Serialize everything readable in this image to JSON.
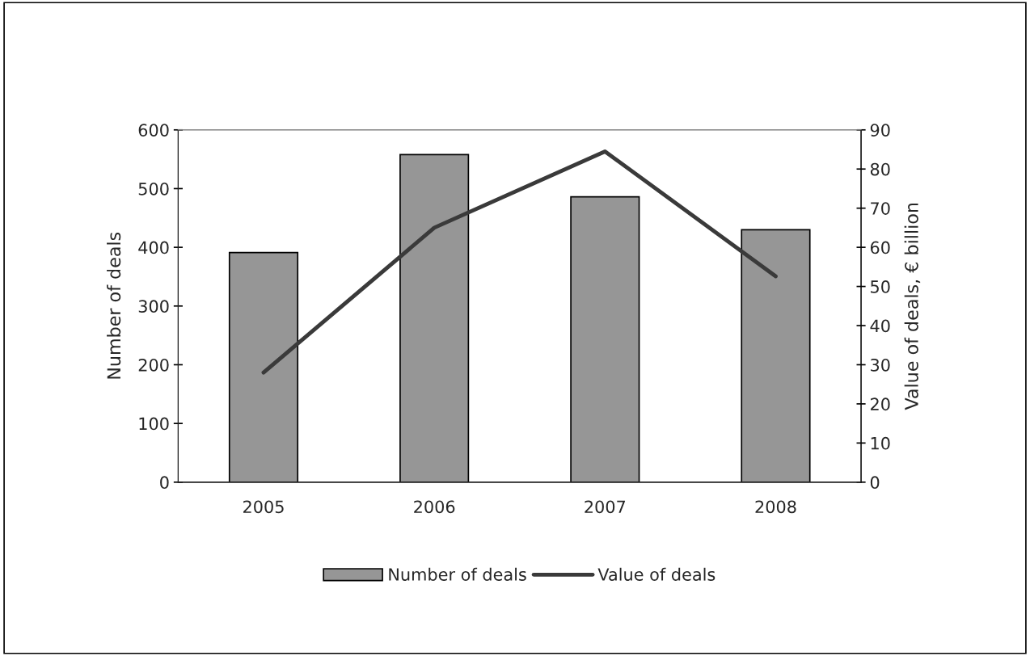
{
  "chart_data": {
    "type": "bar",
    "categories": [
      "2005",
      "2006",
      "2007",
      "2008"
    ],
    "ylabel": "Number of deals",
    "y2label": "Value of deals, € billion",
    "ylim": [
      0,
      600
    ],
    "yticks": [
      0,
      100,
      200,
      300,
      400,
      500,
      600
    ],
    "y2lim": [
      0,
      90
    ],
    "y2ticks": [
      0,
      10,
      20,
      30,
      40,
      50,
      60,
      70,
      80,
      90
    ],
    "series": [
      {
        "name": "Number of deals",
        "color": "#969696",
        "values": [
          391,
          558,
          486,
          430
        ]
      },
      {
        "name": "Value of deals",
        "type": "line",
        "axis": "y2",
        "color": "#3a3a3a",
        "values": [
          28,
          65,
          84.5,
          52.6
        ]
      }
    ],
    "grid": false,
    "legend": "bottom"
  }
}
